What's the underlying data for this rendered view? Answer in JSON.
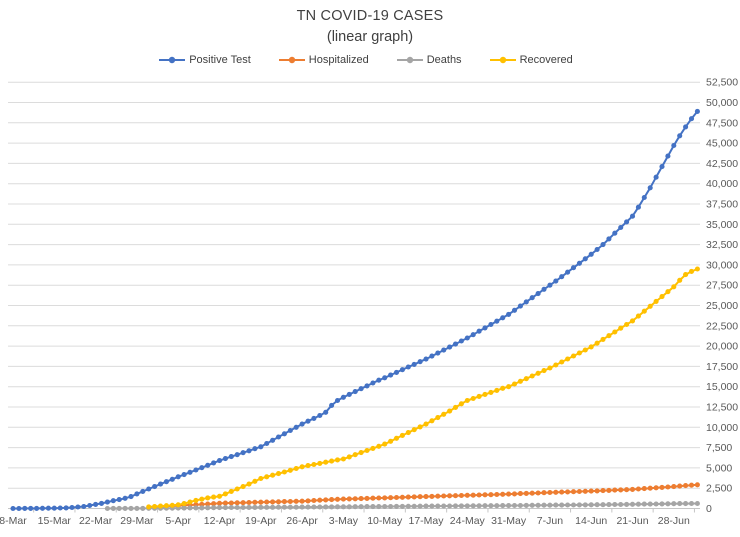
{
  "title": {
    "line1": "TN COVID-19 CASES",
    "line2": "(linear graph)"
  },
  "chart_data": {
    "type": "line",
    "title": "TN COVID-19 CASES",
    "subtitle": "(linear graph)",
    "grid": true,
    "legend_position": "top",
    "x_tick_labels": [
      "8-Mar",
      "15-Mar",
      "22-Mar",
      "29-Mar",
      "5-Apr",
      "12-Apr",
      "19-Apr",
      "26-Apr",
      "3-May",
      "10-May",
      "17-May",
      "24-May",
      "31-May",
      "7-Jun",
      "14-Jun",
      "21-Jun",
      "28-Jun"
    ],
    "x_unit": "day",
    "points_per_series": 117,
    "y_axis": {
      "min": 0,
      "max": 52500,
      "step": 2500,
      "labels_side": "right",
      "tick_format": "#,##0"
    },
    "series": [
      {
        "name": "Positive Test",
        "color": "#4472C4",
        "values": [
          1,
          3,
          7,
          12,
          18,
          26,
          32,
          40,
          56,
          79,
          120,
          180,
          250,
          371,
          505,
          634,
          784,
          957,
          1098,
          1261,
          1460,
          1800,
          2100,
          2400,
          2700,
          3000,
          3300,
          3600,
          3900,
          4180,
          4460,
          4740,
          5030,
          5320,
          5610,
          5900,
          6140,
          6390,
          6630,
          6870,
          7110,
          7360,
          7600,
          8000,
          8400,
          8800,
          9200,
          9600,
          10000,
          10400,
          10750,
          11100,
          11450,
          11850,
          12700,
          13300,
          13700,
          14050,
          14400,
          14750,
          15100,
          15450,
          15800,
          16100,
          16430,
          16760,
          17090,
          17420,
          17750,
          18080,
          18400,
          18770,
          19140,
          19510,
          19880,
          20250,
          20630,
          21000,
          21410,
          21830,
          22240,
          22660,
          23070,
          23490,
          23900,
          24410,
          24930,
          25440,
          25960,
          26470,
          26990,
          27500,
          28000,
          28550,
          29100,
          29650,
          30200,
          30750,
          31300,
          31900,
          32500,
          33200,
          33900,
          34600,
          35300,
          36000,
          37100,
          38300,
          39500,
          40800,
          42100,
          43400,
          44700,
          45900,
          47000,
          48000,
          48900
        ]
      },
      {
        "name": "Hospitalized",
        "color": "#ED7D31",
        "values": [
          null,
          null,
          null,
          null,
          null,
          null,
          null,
          null,
          null,
          null,
          null,
          null,
          null,
          null,
          null,
          null,
          null,
          null,
          null,
          null,
          null,
          null,
          null,
          null,
          200,
          240,
          280,
          320,
          350,
          390,
          430,
          470,
          510,
          550,
          595,
          640,
          660,
          680,
          700,
          720,
          740,
          760,
          780,
          800,
          815,
          830,
          850,
          865,
          885,
          900,
          940,
          980,
          1020,
          1060,
          1100,
          1130,
          1160,
          1180,
          1200,
          1225,
          1245,
          1270,
          1290,
          1310,
          1335,
          1355,
          1380,
          1400,
          1425,
          1450,
          1470,
          1490,
          1515,
          1535,
          1560,
          1580,
          1600,
          1620,
          1640,
          1660,
          1685,
          1705,
          1730,
          1750,
          1770,
          1800,
          1830,
          1855,
          1885,
          1915,
          1940,
          1970,
          1995,
          2020,
          2045,
          2070,
          2095,
          2120,
          2140,
          2170,
          2200,
          2230,
          2260,
          2290,
          2320,
          2350,
          2400,
          2450,
          2500,
          2550,
          2600,
          2650,
          2700,
          2760,
          2820,
          2870,
          2920
        ]
      },
      {
        "name": "Deaths",
        "color": "#A5A5A5",
        "values": [
          null,
          null,
          null,
          null,
          null,
          null,
          null,
          null,
          null,
          null,
          null,
          null,
          null,
          null,
          null,
          null,
          6,
          7,
          9,
          11,
          12,
          13,
          16,
          20,
          24,
          29,
          34,
          39,
          44,
          52,
          61,
          70,
          79,
          88,
          98,
          109,
          115,
          120,
          124,
          128,
          132,
          138,
          145,
          148,
          152,
          156,
          160,
          163,
          166,
          170,
          175,
          180,
          186,
          192,
          198,
          204,
          210,
          215,
          220,
          225,
          230,
          235,
          240,
          245,
          251,
          257,
          264,
          270,
          277,
          283,
          290,
          295,
          300,
          305,
          310,
          315,
          320,
          325,
          330,
          335,
          340,
          345,
          350,
          355,
          360,
          367,
          374,
          381,
          388,
          395,
          402,
          410,
          416,
          422,
          429,
          435,
          442,
          448,
          455,
          463,
          471,
          480,
          488,
          497,
          506,
          515,
          525,
          536,
          547,
          558,
          569,
          580,
          590,
          598,
          606,
          613,
          620
        ]
      },
      {
        "name": "Recovered",
        "color": "#FFC000",
        "values": [
          null,
          null,
          null,
          null,
          null,
          null,
          null,
          null,
          null,
          null,
          null,
          null,
          null,
          null,
          null,
          null,
          null,
          null,
          null,
          null,
          null,
          null,
          null,
          200,
          250,
          300,
          350,
          400,
          450,
          600,
          800,
          1000,
          1150,
          1300,
          1400,
          1500,
          1800,
          2100,
          2400,
          2700,
          3000,
          3350,
          3700,
          3900,
          4100,
          4300,
          4500,
          4700,
          4920,
          5140,
          5280,
          5420,
          5560,
          5700,
          5840,
          5980,
          6100,
          6360,
          6620,
          6880,
          7140,
          7400,
          7660,
          7930,
          8280,
          8640,
          9000,
          9350,
          9700,
          10050,
          10400,
          10800,
          11200,
          11600,
          12000,
          12450,
          12900,
          13300,
          13550,
          13800,
          14050,
          14300,
          14550,
          14800,
          15000,
          15330,
          15660,
          15990,
          16320,
          16650,
          16980,
          17300,
          17670,
          18040,
          18410,
          18780,
          19150,
          19520,
          19900,
          20360,
          20820,
          21280,
          21740,
          22200,
          22660,
          23100,
          23700,
          24300,
          24900,
          25500,
          26100,
          26700,
          27300,
          28100,
          28800,
          29200,
          29500
        ]
      }
    ],
    "colors": {
      "positive_test": "#4472C4",
      "hospitalized": "#ED7D31",
      "deaths": "#A5A5A5",
      "recovered": "#FFC000",
      "gridline": "#DCDCDC",
      "axis_text": "#595959",
      "title_text": "#404040"
    }
  }
}
